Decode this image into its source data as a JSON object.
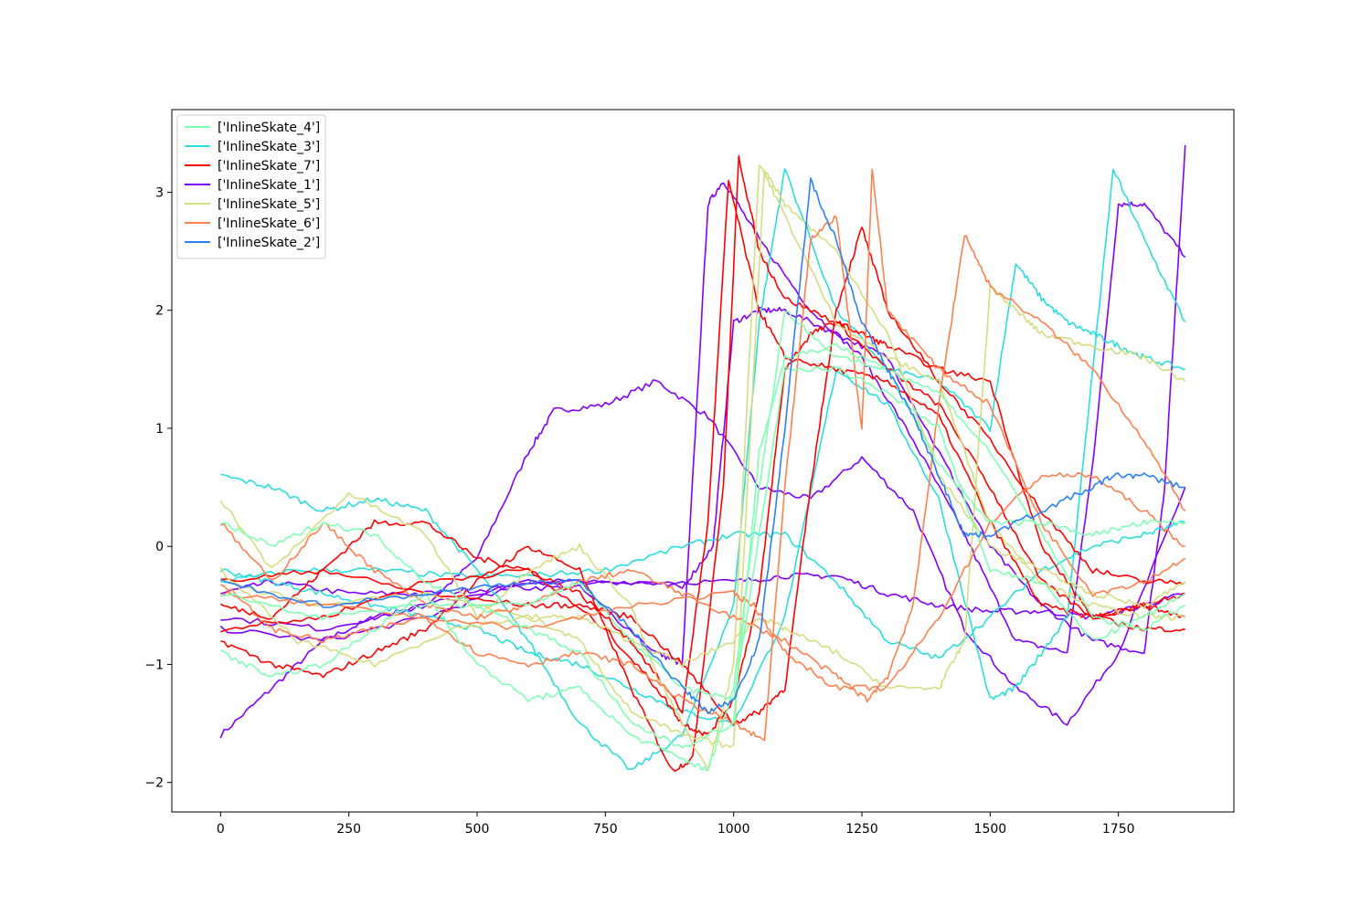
{
  "chart_data": {
    "type": "line",
    "title": "",
    "xlabel": "",
    "ylabel": "",
    "xlim": [
      -95,
      1975
    ],
    "ylim": [
      -2.25,
      3.7
    ],
    "xticks": [
      0,
      250,
      500,
      750,
      1000,
      1250,
      1500,
      1750
    ],
    "yticks": [
      -2,
      -1,
      0,
      1,
      2,
      3
    ],
    "xtick_labels": [
      "0",
      "250",
      "500",
      "750",
      "1000",
      "1250",
      "1500",
      "1750"
    ],
    "ytick_labels": [
      "−2",
      "−1",
      "0",
      "1",
      "2",
      "3"
    ],
    "grid": false,
    "legend_placement": "upper-left",
    "legend": [
      {
        "label": "['InlineSkate_4']",
        "color": "#80ffb4"
      },
      {
        "label": "['InlineSkate_3']",
        "color": "#2adddd"
      },
      {
        "label": "['InlineSkate_7']",
        "color": "#ff0000"
      },
      {
        "label": "['InlineSkate_1']",
        "color": "#8000ff"
      },
      {
        "label": "['InlineSkate_5']",
        "color": "#d4dd80"
      },
      {
        "label": "['InlineSkate_6']",
        "color": "#ff7f4e"
      },
      {
        "label": "['InlineSkate_2']",
        "color": "#2c7ff8"
      }
    ],
    "series": [
      {
        "color": "#8000ff",
        "x": [
          0,
          100,
          200,
          300,
          400,
          500,
          600,
          650,
          750,
          850,
          950,
          1050,
          1150,
          1250,
          1350,
          1450,
          1550,
          1650,
          1750,
          1880
        ],
        "y": [
          -1.6,
          -1.2,
          -0.8,
          -0.6,
          -0.5,
          -0.1,
          0.8,
          1.15,
          1.2,
          1.4,
          1.1,
          0.5,
          0.4,
          0.75,
          0.3,
          -0.7,
          -1.2,
          -1.5,
          -0.9,
          0.5
        ]
      },
      {
        "color": "#8000ff",
        "x": [
          0,
          100,
          250,
          400,
          550,
          700,
          850,
          900,
          950,
          980,
          1050,
          1150,
          1250,
          1350,
          1450,
          1550,
          1650,
          1700,
          1750,
          1800,
          1880
        ],
        "y": [
          -0.4,
          -0.3,
          -0.4,
          -0.4,
          -0.35,
          -0.35,
          -0.9,
          -1.0,
          2.9,
          3.1,
          2.6,
          2.0,
          1.6,
          0.9,
          0.1,
          -0.8,
          -0.9,
          0.7,
          2.9,
          2.9,
          2.45
        ]
      },
      {
        "color": "#8000ff",
        "x": [
          0,
          200,
          400,
          600,
          800,
          900,
          960,
          1000,
          1050,
          1100,
          1200,
          1300,
          1400,
          1500,
          1600,
          1700,
          1800,
          1840,
          1880
        ],
        "y": [
          -0.7,
          -0.8,
          -0.6,
          -0.3,
          -0.3,
          -0.35,
          0.0,
          1.9,
          2.0,
          2.0,
          1.8,
          1.6,
          0.8,
          0.0,
          -0.5,
          -0.8,
          -0.9,
          0.5,
          3.4
        ]
      },
      {
        "color": "#8000ff",
        "x": [
          0,
          200,
          400,
          600,
          800,
          1000,
          1100,
          1200,
          1300,
          1400,
          1500,
          1600,
          1700,
          1800,
          1880
        ],
        "y": [
          -0.6,
          -0.7,
          -0.5,
          -0.3,
          -0.3,
          -0.3,
          -0.25,
          -0.25,
          -0.4,
          -0.5,
          -0.55,
          -0.55,
          -0.6,
          -0.5,
          -0.4
        ]
      },
      {
        "color": "#2adddd",
        "x": [
          0,
          100,
          200,
          300,
          400,
          500,
          600,
          700,
          800,
          900,
          1000,
          1050,
          1100,
          1200,
          1300,
          1400,
          1500,
          1550,
          1600,
          1650,
          1700,
          1750,
          1800,
          1880
        ],
        "y": [
          0.6,
          0.5,
          0.3,
          0.4,
          0.3,
          -0.2,
          -0.8,
          -1.5,
          -1.9,
          -1.6,
          -0.5,
          1.9,
          3.2,
          2.0,
          1.5,
          1.4,
          1.0,
          2.4,
          2.1,
          1.9,
          1.8,
          1.7,
          1.6,
          1.5
        ]
      },
      {
        "color": "#2adddd",
        "x": [
          0,
          100,
          200,
          300,
          400,
          500,
          600,
          700,
          800,
          900,
          1000,
          1100,
          1200,
          1300,
          1400,
          1500,
          1550,
          1600,
          1650,
          1700,
          1740,
          1800,
          1880
        ],
        "y": [
          -0.2,
          -0.3,
          -0.4,
          -0.5,
          -0.6,
          -0.7,
          -0.9,
          -1.0,
          -1.2,
          -1.4,
          -1.5,
          -0.6,
          1.5,
          1.2,
          0.4,
          -1.3,
          -1.2,
          -0.9,
          -0.6,
          1.5,
          3.2,
          2.6,
          1.9
        ]
      },
      {
        "color": "#2adddd",
        "x": [
          0,
          150,
          300,
          450,
          600,
          750,
          900,
          1000,
          1100,
          1200,
          1300,
          1400,
          1500,
          1600,
          1700,
          1800,
          1880
        ],
        "y": [
          -0.3,
          -0.2,
          -0.2,
          -0.25,
          -0.25,
          -0.2,
          0.0,
          0.1,
          0.1,
          -0.3,
          -0.8,
          -0.95,
          -0.6,
          -0.2,
          0.0,
          0.1,
          0.2
        ]
      },
      {
        "color": "#ff0000",
        "x": [
          0,
          100,
          200,
          300,
          400,
          500,
          600,
          700,
          800,
          880,
          920,
          980,
          1010,
          1050,
          1100,
          1200,
          1300,
          1400,
          1500,
          1600,
          1700,
          1800,
          1880
        ],
        "y": [
          -0.8,
          -1.0,
          -1.1,
          -0.9,
          -0.7,
          -0.3,
          0.0,
          -0.2,
          -1.2,
          -1.9,
          -1.8,
          0.5,
          3.3,
          2.5,
          2.1,
          1.9,
          1.5,
          1.2,
          0.5,
          -0.3,
          -0.6,
          -0.5,
          -0.6
        ]
      },
      {
        "color": "#ff0000",
        "x": [
          0,
          100,
          200,
          300,
          400,
          500,
          600,
          700,
          800,
          900,
          950,
          990,
          1050,
          1100,
          1200,
          1300,
          1400,
          1500,
          1600,
          1700,
          1800,
          1880
        ],
        "y": [
          -0.5,
          -0.6,
          -0.2,
          0.2,
          0.2,
          -0.1,
          -0.2,
          -0.4,
          -0.8,
          -1.4,
          0.2,
          3.1,
          2.0,
          1.6,
          1.5,
          1.4,
          1.1,
          0.2,
          -0.5,
          -0.6,
          -0.5,
          -0.4
        ]
      },
      {
        "color": "#ff0000",
        "x": [
          0,
          200,
          400,
          600,
          750,
          850,
          900,
          950,
          1000,
          1050,
          1100,
          1150,
          1200,
          1250,
          1300,
          1400,
          1500,
          1600,
          1700,
          1800,
          1880
        ],
        "y": [
          -0.7,
          -0.6,
          -0.3,
          -0.2,
          -0.7,
          -1.2,
          -1.5,
          -1.6,
          -1.3,
          -0.4,
          1.5,
          1.8,
          1.9,
          1.8,
          1.7,
          1.5,
          1.4,
          0.0,
          -0.6,
          -0.7,
          -0.7
        ]
      },
      {
        "color": "#ff0000",
        "x": [
          0,
          200,
          400,
          600,
          700,
          800,
          900,
          1000,
          1050,
          1100,
          1150,
          1200,
          1250,
          1300,
          1400,
          1500,
          1600,
          1700,
          1800,
          1880
        ],
        "y": [
          -0.3,
          -0.2,
          -0.4,
          -0.5,
          -0.5,
          -0.6,
          -1.0,
          -1.5,
          -1.4,
          -1.2,
          0.5,
          2.0,
          2.7,
          2.0,
          1.4,
          0.9,
          0.3,
          -0.2,
          -0.3,
          -0.3
        ]
      },
      {
        "color": "#d4dd80",
        "x": [
          0,
          100,
          250,
          400,
          500,
          600,
          700,
          800,
          850,
          950,
          1000,
          1050,
          1100,
          1200,
          1300,
          1400,
          1500,
          1600,
          1700,
          1800,
          1880
        ],
        "y": [
          0.4,
          -0.2,
          0.45,
          0.1,
          -0.6,
          -0.2,
          0.0,
          -0.5,
          -1.1,
          -1.9,
          -1.0,
          3.25,
          2.8,
          1.9,
          1.6,
          1.4,
          0.2,
          -0.3,
          -0.5,
          -0.6,
          -0.6
        ]
      },
      {
        "color": "#d4dd80",
        "x": [
          0,
          150,
          300,
          450,
          600,
          700,
          800,
          900,
          1000,
          1050,
          1100,
          1200,
          1300,
          1400,
          1450,
          1500,
          1550,
          1600,
          1700,
          1800,
          1880
        ],
        "y": [
          -0.2,
          -0.8,
          -1.0,
          -0.7,
          -0.6,
          -0.6,
          -0.8,
          -1.0,
          -0.8,
          -0.6,
          -0.7,
          -0.9,
          -1.2,
          -1.2,
          -0.8,
          2.2,
          2.0,
          1.8,
          1.7,
          1.6,
          1.4
        ]
      },
      {
        "color": "#d4dd80",
        "x": [
          0,
          200,
          400,
          600,
          700,
          800,
          900,
          1000,
          1060,
          1100,
          1200,
          1300,
          1400,
          1500,
          1600,
          1700,
          1800,
          1880
        ],
        "y": [
          -0.3,
          -0.5,
          -0.4,
          -0.6,
          -0.8,
          -1.4,
          -1.6,
          -1.7,
          3.2,
          2.9,
          2.5,
          1.8,
          0.6,
          0.0,
          -0.2,
          -0.4,
          -0.5,
          -0.3
        ]
      },
      {
        "color": "#ff7f4e",
        "x": [
          0,
          100,
          200,
          300,
          400,
          500,
          600,
          700,
          800,
          900,
          1000,
          1060,
          1100,
          1150,
          1200,
          1250,
          1270,
          1300,
          1400,
          1500,
          1600,
          1700,
          1800,
          1880
        ],
        "y": [
          -0.3,
          -0.7,
          -0.8,
          -0.7,
          -0.6,
          -0.9,
          -1.0,
          -0.9,
          -1.0,
          -1.3,
          -1.5,
          -1.65,
          0.5,
          2.6,
          2.8,
          1.0,
          3.2,
          2.0,
          1.5,
          1.2,
          0.2,
          -0.4,
          -0.3,
          -0.1
        ]
      },
      {
        "color": "#ff7f4e",
        "x": [
          0,
          100,
          200,
          300,
          400,
          500,
          600,
          700,
          800,
          900,
          1000,
          1100,
          1200,
          1260,
          1300,
          1350,
          1400,
          1450,
          1500,
          1600,
          1700,
          1800,
          1880
        ],
        "y": [
          0.2,
          -0.3,
          0.2,
          -0.2,
          -0.5,
          -0.6,
          -0.5,
          -0.3,
          -0.2,
          -0.4,
          -0.6,
          -0.8,
          -1.1,
          -1.3,
          -1.1,
          -0.5,
          1.2,
          2.65,
          2.2,
          1.9,
          1.5,
          0.9,
          0.3
        ]
      },
      {
        "color": "#ff7f4e",
        "x": [
          0,
          200,
          400,
          600,
          800,
          1000,
          1040,
          1100,
          1200,
          1300,
          1400,
          1500,
          1600,
          1700,
          1800,
          1880
        ],
        "y": [
          -0.4,
          -0.5,
          -0.6,
          -0.7,
          -0.5,
          -0.4,
          -0.5,
          -0.9,
          -1.2,
          -1.2,
          -0.6,
          0.2,
          0.6,
          0.6,
          0.3,
          0.0
        ]
      },
      {
        "color": "#80ffb4",
        "x": [
          0,
          100,
          200,
          300,
          400,
          500,
          600,
          700,
          800,
          900,
          950,
          1000,
          1050,
          1100,
          1200,
          1300,
          1400,
          1500,
          1600,
          1700,
          1800,
          1880
        ],
        "y": [
          -0.9,
          -1.1,
          -1.0,
          -0.7,
          -0.4,
          -1.0,
          -1.3,
          -1.2,
          -1.6,
          -1.8,
          -1.9,
          -1.2,
          0.5,
          2.0,
          1.6,
          1.5,
          1.3,
          0.8,
          0.1,
          -0.6,
          -0.7,
          -0.5
        ]
      },
      {
        "color": "#80ffb4",
        "x": [
          0,
          100,
          200,
          300,
          400,
          500,
          600,
          700,
          800,
          900,
          1000,
          1050,
          1100,
          1200,
          1300,
          1400,
          1500,
          1600,
          1700,
          1800,
          1880
        ],
        "y": [
          0.2,
          0.0,
          0.2,
          0.1,
          -0.3,
          -0.5,
          -0.7,
          -0.9,
          -1.5,
          -1.7,
          -1.5,
          0.8,
          1.6,
          1.7,
          1.5,
          0.7,
          0.2,
          0.2,
          0.1,
          0.2,
          0.2
        ]
      },
      {
        "color": "#80ffb4",
        "x": [
          0,
          200,
          400,
          600,
          700,
          800,
          900,
          1000,
          1100,
          1200,
          1300,
          1400,
          1500,
          1600,
          1700,
          1800,
          1880
        ],
        "y": [
          -0.4,
          -0.6,
          -0.5,
          -0.5,
          -0.3,
          -0.8,
          -1.2,
          -1.3,
          1.5,
          1.5,
          1.3,
          1.0,
          -0.2,
          -0.3,
          -0.8,
          -0.6,
          -0.4
        ]
      },
      {
        "color": "#2c7ff8",
        "x": [
          0,
          200,
          400,
          600,
          700,
          800,
          900,
          950,
          1000,
          1050,
          1100,
          1150,
          1200,
          1250,
          1300,
          1350,
          1400,
          1450,
          1500,
          1600,
          1700,
          1740,
          1800,
          1880
        ],
        "y": [
          -0.3,
          -0.5,
          -0.4,
          -0.3,
          -0.3,
          -0.7,
          -1.2,
          -1.4,
          -1.3,
          -0.8,
          1.0,
          3.1,
          2.6,
          1.9,
          1.5,
          1.1,
          0.6,
          0.1,
          0.1,
          0.3,
          0.5,
          0.6,
          0.6,
          0.5
        ]
      }
    ]
  }
}
